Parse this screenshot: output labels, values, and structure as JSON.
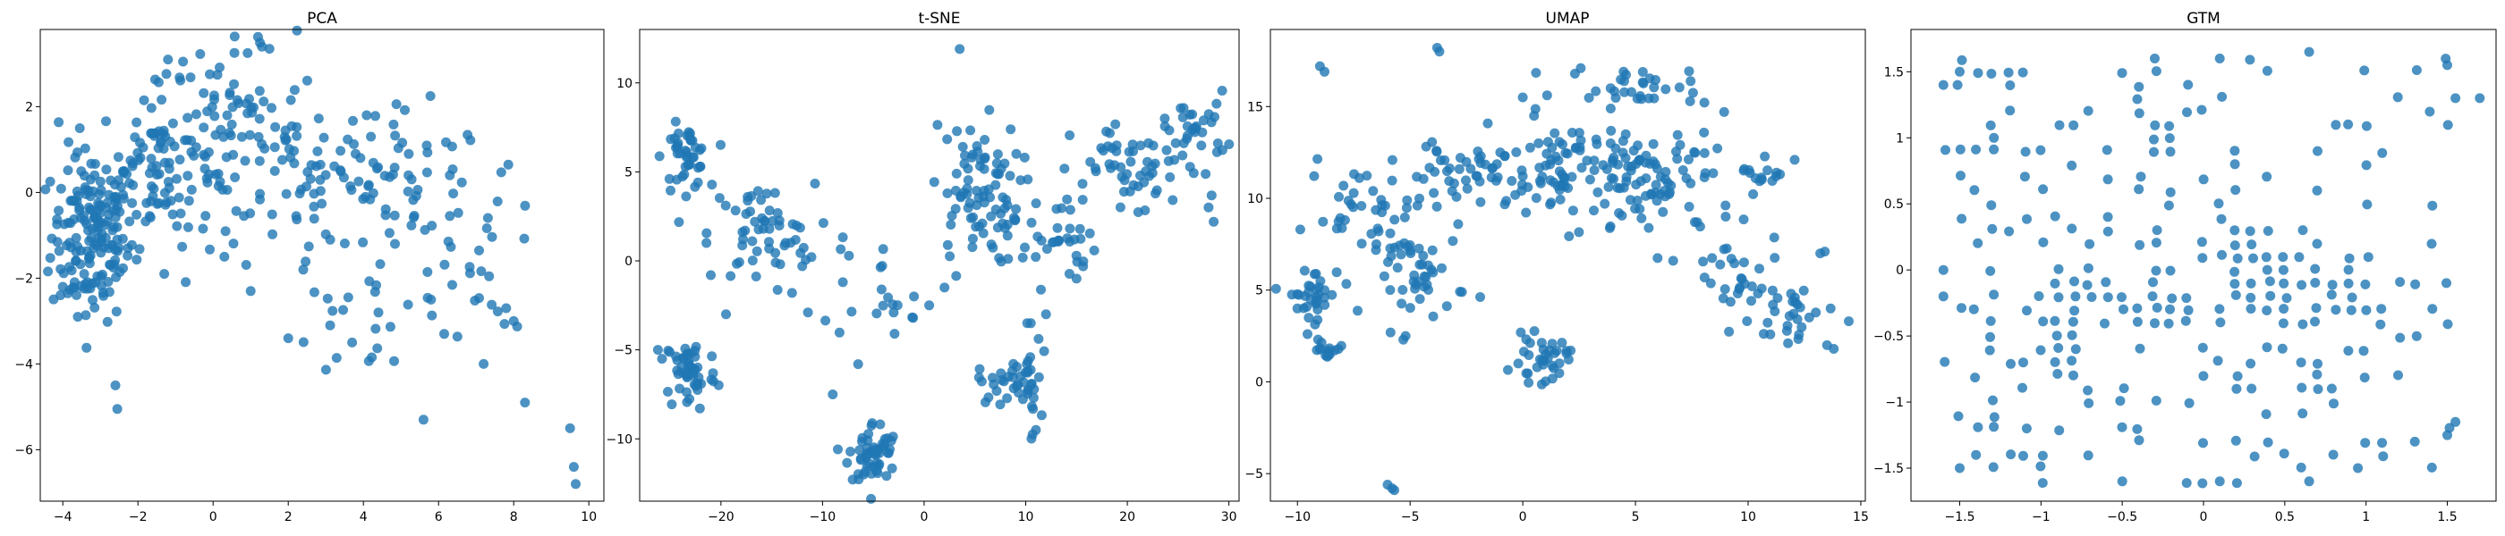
{
  "figure": {
    "background": "#ffffff",
    "point_color": "#1f77b4",
    "point_alpha": 0.8
  },
  "chart_data": [
    {
      "type": "scatter",
      "title": "PCA",
      "xlabel": "",
      "ylabel": "",
      "xlim": [
        -4.6,
        10.4
      ],
      "ylim": [
        -7.2,
        3.8
      ],
      "xticks": [
        -4,
        -2,
        0,
        2,
        4,
        6,
        8,
        10
      ],
      "yticks": [
        -6,
        -4,
        -2,
        0,
        2
      ],
      "grid": false,
      "clusters": [
        {
          "center": [
            -3.2,
            -1.0
          ],
          "spread": [
            0.55,
            1.0
          ],
          "n": 170
        },
        {
          "center": [
            -1.5,
            0.6
          ],
          "spread": [
            0.75,
            0.9
          ],
          "n": 90
        },
        {
          "center": [
            0.3,
            1.3
          ],
          "spread": [
            1.0,
            1.0
          ],
          "n": 80
        },
        {
          "center": [
            2.8,
            0.5
          ],
          "spread": [
            1.3,
            1.0
          ],
          "n": 70
        },
        {
          "center": [
            5.5,
            -0.2
          ],
          "spread": [
            0.9,
            1.0
          ],
          "n": 45
        },
        {
          "center": [
            4.3,
            -2.6
          ],
          "spread": [
            1.2,
            0.9
          ],
          "n": 25
        },
        {
          "center": [
            7.5,
            -1.5
          ],
          "spread": [
            0.6,
            0.9
          ],
          "n": 20
        }
      ],
      "points": [
        [
          -4.0,
          -2.2
        ],
        [
          -3.6,
          -2.9
        ],
        [
          -2.6,
          -4.5
        ],
        [
          -2.55,
          -5.05
        ],
        [
          -1.3,
          -1.9
        ],
        [
          -1.2,
          3.1
        ],
        [
          -0.8,
          3.05
        ],
        [
          1.3,
          3.4
        ],
        [
          1.5,
          3.35
        ],
        [
          0.3,
          -1.5
        ],
        [
          1.0,
          -2.3
        ],
        [
          2.0,
          -3.4
        ],
        [
          3.7,
          -3.5
        ],
        [
          4.4,
          -2.8
        ],
        [
          5.6,
          -5.3
        ],
        [
          5.8,
          -2.5
        ],
        [
          7.2,
          -4.0
        ],
        [
          7.8,
          -2.7
        ],
        [
          8.0,
          -3.0
        ],
        [
          8.3,
          -4.9
        ],
        [
          9.5,
          -5.5
        ],
        [
          9.6,
          -6.4
        ],
        [
          9.65,
          -6.8
        ],
        [
          6.3,
          0.4
        ],
        [
          5.2,
          0.4
        ],
        [
          4.2,
          1.3
        ],
        [
          2.4,
          -1.8
        ]
      ]
    },
    {
      "type": "scatter",
      "title": "t-SNE",
      "xlabel": "",
      "ylabel": "",
      "xlim": [
        -28,
        31
      ],
      "ylim": [
        -13.5,
        13.0
      ],
      "xticks": [
        -20,
        -10,
        0,
        10,
        20,
        30
      ],
      "yticks": [
        -10,
        -5,
        0,
        5,
        10
      ],
      "grid": false,
      "clusters": [
        {
          "center": [
            -23.5,
            5.8
          ],
          "spread": [
            1.1,
            0.9
          ],
          "n": 45
        },
        {
          "center": [
            -16,
            1.5
          ],
          "spread": [
            2.6,
            1.4
          ],
          "n": 55
        },
        {
          "center": [
            -23,
            -6.3
          ],
          "spread": [
            1.3,
            1.1
          ],
          "n": 50
        },
        {
          "center": [
            -5,
            -10.8
          ],
          "spread": [
            1.2,
            0.9
          ],
          "n": 55
        },
        {
          "center": [
            -4,
            -1.0
          ],
          "spread": [
            3.0,
            1.6
          ],
          "n": 22
        },
        {
          "center": [
            5,
            3.8
          ],
          "spread": [
            2.2,
            2.0
          ],
          "n": 80
        },
        {
          "center": [
            12.5,
            1.5
          ],
          "spread": [
            2.2,
            1.4
          ],
          "n": 40
        },
        {
          "center": [
            21,
            5.0
          ],
          "spread": [
            3.2,
            1.4
          ],
          "n": 55
        },
        {
          "center": [
            27,
            7.5
          ],
          "spread": [
            1.4,
            1.0
          ],
          "n": 30
        },
        {
          "center": [
            8.5,
            -6.8
          ],
          "spread": [
            1.6,
            0.6
          ],
          "n": 30
        },
        {
          "center": [
            10.5,
            -7.0
          ],
          "spread": [
            0.5,
            1.6
          ],
          "n": 18
        }
      ],
      "points": [
        [
          3.5,
          11.9
        ],
        [
          -26.2,
          -5.0
        ],
        [
          -25.8,
          -5.5
        ],
        [
          -12.0,
          -0.3
        ],
        [
          -9.0,
          -7.5
        ],
        [
          -6.5,
          -5.8
        ],
        [
          -3.0,
          -2.9
        ],
        [
          -1.0,
          -2.0
        ],
        [
          0.5,
          -2.5
        ],
        [
          2.0,
          -1.5
        ],
        [
          11.0,
          -9.5
        ],
        [
          12.0,
          -3.0
        ],
        [
          15.0,
          -1.0
        ],
        [
          10.5,
          -3.5
        ],
        [
          28.5,
          2.2
        ],
        [
          28.0,
          3.0
        ],
        [
          -8.0,
          -1.2
        ],
        [
          -13.0,
          -1.8
        ],
        [
          -19.5,
          -3.0
        ],
        [
          -21.0,
          -0.8
        ]
      ]
    },
    {
      "type": "scatter",
      "title": "UMAP",
      "xlabel": "",
      "ylabel": "",
      "xlim": [
        -11.2,
        15.2
      ],
      "ylim": [
        -6.5,
        19.2
      ],
      "xticks": [
        -10,
        -5,
        0,
        5,
        10,
        15
      ],
      "yticks": [
        -5,
        0,
        5,
        10,
        15
      ],
      "grid": false,
      "clusters": [
        {
          "center": [
            -9.3,
            4.8
          ],
          "spread": [
            0.55,
            0.7
          ],
          "n": 30
        },
        {
          "center": [
            -7.2,
            9.0
          ],
          "spread": [
            1.2,
            1.4
          ],
          "n": 35
        },
        {
          "center": [
            -4.5,
            5.8
          ],
          "spread": [
            1.0,
            1.1
          ],
          "n": 45
        },
        {
          "center": [
            -3.5,
            11.3
          ],
          "spread": [
            1.3,
            0.8
          ],
          "n": 30
        },
        {
          "center": [
            -1.2,
            11.2
          ],
          "spread": [
            1.5,
            1.2
          ],
          "n": 25
        },
        {
          "center": [
            2.2,
            11.5
          ],
          "spread": [
            1.5,
            1.5
          ],
          "n": 75
        },
        {
          "center": [
            6.0,
            10.8
          ],
          "spread": [
            1.8,
            1.7
          ],
          "n": 85
        },
        {
          "center": [
            9.5,
            5.5
          ],
          "spread": [
            1.0,
            1.3
          ],
          "n": 30
        },
        {
          "center": [
            12.2,
            3.5
          ],
          "spread": [
            1.0,
            1.0
          ],
          "n": 25
        },
        {
          "center": [
            0.8,
            1.2
          ],
          "spread": [
            0.6,
            0.6
          ],
          "n": 35
        },
        {
          "center": [
            -8.6,
            1.8
          ],
          "spread": [
            0.4,
            0.3
          ],
          "n": 15
        },
        {
          "center": [
            4.8,
            16.2
          ],
          "spread": [
            1.4,
            0.5
          ],
          "n": 30
        },
        {
          "center": [
            10.8,
            11.5
          ],
          "spread": [
            0.6,
            0.5
          ],
          "n": 15
        }
      ],
      "points": [
        [
          -9.0,
          17.2
        ],
        [
          -8.8,
          16.9
        ],
        [
          -3.8,
          18.2
        ],
        [
          -3.7,
          18.0
        ],
        [
          -6.0,
          -5.6
        ],
        [
          -5.8,
          -5.8
        ],
        [
          -5.7,
          -5.9
        ],
        [
          -5.3,
          2.3
        ],
        [
          -5.2,
          2.5
        ],
        [
          -1.0,
          12.5
        ],
        [
          -0.8,
          12.3
        ],
        [
          0.0,
          15.5
        ],
        [
          0.5,
          14.5
        ],
        [
          13.2,
          7.0
        ],
        [
          13.4,
          7.1
        ],
        [
          13.8,
          1.8
        ],
        [
          13.5,
          2.0
        ],
        [
          -0.2,
          1.0
        ],
        [
          -10.0,
          4.0
        ],
        [
          -9.5,
          3.5
        ],
        [
          -6.5,
          7.5
        ]
      ]
    },
    {
      "type": "scatter",
      "title": "GTM",
      "xlabel": "",
      "ylabel": "",
      "xlim": [
        -1.8,
        1.8
      ],
      "ylim": [
        -1.75,
        1.82
      ],
      "xticks": [
        -1.5,
        -1.0,
        -0.5,
        0.0,
        0.5,
        1.0,
        1.5
      ],
      "yticks": [
        -1.5,
        -1.0,
        -0.5,
        0.0,
        0.5,
        1.0,
        1.5
      ],
      "grid": false,
      "grid_x": [
        -1.6,
        -1.5,
        -1.4,
        -1.3,
        -1.2,
        -1.1,
        -1.0,
        -0.9,
        -0.8,
        -0.7,
        -0.6,
        -0.5,
        -0.4,
        -0.3,
        -0.2,
        -0.1,
        0.0,
        0.1,
        0.2,
        0.3,
        0.4,
        0.5,
        0.6,
        0.7,
        0.8,
        0.9,
        1.0,
        1.1,
        1.2,
        1.3,
        1.4,
        1.5
      ],
      "grid_y": [
        -1.6,
        -1.5,
        -1.4,
        -1.3,
        -1.2,
        -1.1,
        -1.0,
        -0.9,
        -0.8,
        -0.7,
        -0.6,
        -0.5,
        -0.4,
        -0.3,
        -0.2,
        -0.1,
        0.0,
        0.1,
        0.2,
        0.3,
        0.4,
        0.5,
        0.6,
        0.7,
        0.8,
        0.9,
        1.0,
        1.1,
        1.2,
        1.3,
        1.4,
        1.5,
        1.6
      ],
      "dense_regions": [
        {
          "x": [
            -0.6,
            -0.1
          ],
          "y": [
            -0.45,
            -0.2
          ]
        },
        {
          "x": [
            -0.9,
            -0.6
          ],
          "y": [
            -0.3,
            0.0
          ]
        },
        {
          "x": [
            0.2,
            0.4
          ],
          "y": [
            -0.3,
            0.0
          ]
        },
        {
          "x": [
            0.5,
            1.0
          ],
          "y": [
            -0.4,
            0.1
          ]
        },
        {
          "x": [
            0.7,
            1.0
          ],
          "y": [
            -0.4,
            -0.1
          ]
        },
        {
          "x": [
            -1.0,
            -0.8
          ],
          "y": [
            -0.7,
            -0.4
          ]
        },
        {
          "x": [
            0.1,
            0.3
          ],
          "y": [
            0.1,
            0.3
          ]
        }
      ],
      "points": [
        [
          -1.6,
          0.0
        ],
        [
          -1.6,
          -0.2
        ],
        [
          -1.6,
          1.4
        ],
        [
          -1.5,
          1.5
        ],
        [
          -1.5,
          -1.5
        ],
        [
          -1.4,
          -1.4
        ],
        [
          1.7,
          1.3
        ],
        [
          1.5,
          1.55
        ],
        [
          1.55,
          1.3
        ],
        [
          0.65,
          1.65
        ],
        [
          0.1,
          1.6
        ],
        [
          -0.3,
          1.6
        ],
        [
          0.1,
          -1.6
        ],
        [
          -0.5,
          -1.6
        ],
        [
          0.65,
          -1.6
        ],
        [
          1.5,
          -1.25
        ],
        [
          1.55,
          -1.15
        ],
        [
          1.3,
          -1.3
        ],
        [
          0.95,
          -1.5
        ]
      ]
    }
  ]
}
